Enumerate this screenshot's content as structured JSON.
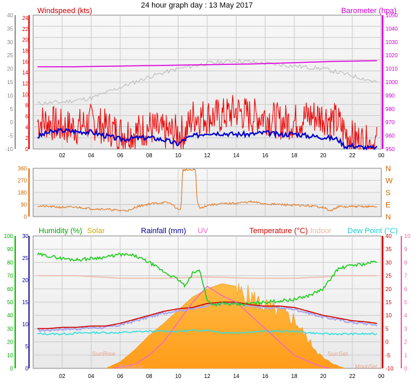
{
  "title": "24 hour graph day : 13 May 2017",
  "colors": {
    "wind": "#ee0000",
    "windAvg": "#0000cc",
    "baro": "#dd00dd",
    "temp": "#cc0000",
    "indoor": "#f0b8a8",
    "dew": "#33dddd",
    "feel": "#aaa6ee",
    "hum": "#22cc22",
    "solar": "#ffaa33",
    "solarMax": "#bbbbbb",
    "uv": "#ee66cc",
    "rain": "#000099",
    "dir": "#dd7722",
    "axisGreen": "#00cc00",
    "axisPink": "#ee66aa",
    "axisBlue": "#333399",
    "axisGray": "#999999",
    "plotBg": "#f5f5f5",
    "grid": "#cccccc",
    "note": "#e8a898"
  },
  "chart_data": [
    {
      "type": "line",
      "title": "",
      "x_ticks": [
        "02",
        "04",
        "06",
        "08",
        "10",
        "12",
        "14",
        "16",
        "18",
        "20",
        "22",
        "00"
      ],
      "left_axis": {
        "label": "Windspeed (kts)",
        "ticks": [
          "0",
          "2",
          "4",
          "6",
          "8",
          "10",
          "12",
          "14",
          "16",
          "18",
          "20",
          "22",
          "24"
        ],
        "ylim": [
          0,
          24.5
        ]
      },
      "left_gray_axis": {
        "ticks": [
          "-10",
          "-5",
          "0",
          "5",
          "10",
          "15",
          "20",
          "25",
          "30",
          "35",
          "40"
        ],
        "ylim": [
          -10,
          40
        ]
      },
      "right_axis": {
        "label": "Barometer (hpa)",
        "ticks": [
          "950",
          "960",
          "970",
          "980",
          "990",
          "1000",
          "1010",
          "1020",
          "1030",
          "1040",
          "1050"
        ],
        "ylim": [
          950,
          1050
        ]
      },
      "series": [
        {
          "name": "Windspeed (kts)",
          "axis": "left",
          "x": [
            0.3,
            1,
            2,
            3,
            4,
            5,
            6,
            7,
            8,
            9,
            10,
            10.5,
            11,
            12,
            13,
            14,
            15,
            16,
            17,
            18,
            19,
            20,
            21,
            21.5,
            22,
            23,
            23.7
          ],
          "y": [
            5,
            5,
            4,
            4,
            5,
            4,
            3,
            3,
            4,
            3,
            3,
            3,
            6,
            6,
            6,
            7,
            6,
            6,
            5,
            5,
            6,
            6,
            5,
            3,
            2,
            1,
            1
          ]
        },
        {
          "name": "Wind average",
          "axis": "left",
          "x": [
            0.3,
            1,
            2,
            3,
            4,
            5,
            6,
            7,
            8,
            9,
            10,
            10.5,
            11,
            12,
            13,
            14,
            15,
            16,
            17,
            18,
            19,
            20,
            21,
            21.5,
            22,
            23,
            23.7
          ],
          "y": [
            2.2,
            3,
            3.4,
            3.2,
            3.1,
            2.4,
            1.8,
            2,
            2.1,
            1.7,
            0.9,
            1.9,
            2.3,
            3,
            2.9,
            2.7,
            2.7,
            3,
            2.6,
            2.8,
            2.4,
            2.2,
            1.8,
            0.5,
            0.6,
            0.2,
            0.1
          ]
        },
        {
          "name": "Barometer (hpa)",
          "axis": "right",
          "x": [
            0.3,
            3,
            6,
            9,
            12,
            15,
            18,
            21,
            23.7
          ],
          "y": [
            1011.5,
            1011.5,
            1012,
            1012.5,
            1013,
            1013.5,
            1014.5,
            1015.5,
            1016
          ]
        },
        {
          "name": "Gray trace",
          "axis": "left_gray",
          "x": [
            0.3,
            2,
            4,
            6,
            8,
            10,
            12,
            14,
            16,
            18,
            20,
            21.5,
            23,
            23.7
          ],
          "y": [
            7,
            7.5,
            9,
            13,
            17,
            20,
            22,
            23,
            22,
            21,
            20,
            18,
            16,
            15
          ]
        }
      ]
    },
    {
      "type": "line",
      "title": "",
      "x_ticks": [],
      "left_axis": {
        "ticks": [
          "0",
          "90",
          "180",
          "270",
          "360"
        ],
        "ylim": [
          0,
          360
        ]
      },
      "right_axis": {
        "ticks": [
          "N",
          "W",
          "S",
          "E",
          "N"
        ]
      },
      "series": [
        {
          "name": "Wind direction",
          "x": [
            0.3,
            1,
            2,
            3,
            4,
            5,
            6,
            6.8,
            7,
            8,
            9,
            9.5,
            10,
            10.2,
            10.3,
            10.5,
            11,
            11.2,
            11.3,
            11.5,
            12,
            13,
            14,
            15,
            16,
            17,
            18,
            19,
            20,
            20.5,
            21,
            21.5,
            22,
            23,
            23.7
          ],
          "y": [
            80,
            75,
            70,
            70,
            60,
            55,
            45,
            48,
            70,
            95,
            105,
            100,
            50,
            65,
            345,
            350,
            345,
            355,
            110,
            60,
            85,
            95,
            100,
            110,
            95,
            90,
            85,
            80,
            70,
            40,
            75,
            72,
            75,
            75,
            75
          ]
        }
      ]
    },
    {
      "type": "area",
      "title": "",
      "x_ticks": [
        "02",
        "04",
        "06",
        "08",
        "10",
        "12",
        "14",
        "16",
        "18",
        "20",
        "22",
        "00"
      ],
      "legend": [
        "Humidity (%)",
        "Solar",
        "Rainfall (mm)",
        "UV",
        "Temperature (°C)",
        "Indoor",
        "Dew Point (°C)"
      ],
      "left_green_axis": {
        "label": "Humidity (%)",
        "ticks": [
          "0",
          "10",
          "20",
          "30",
          "40",
          "50",
          "60",
          "70",
          "80",
          "90",
          "100"
        ],
        "ylim": [
          0,
          100
        ]
      },
      "left_axis": {
        "label": "Rainfall (mm)",
        "ticks": [
          "0",
          "5",
          "10",
          "15",
          "20",
          "25",
          "30"
        ],
        "ylim": [
          0,
          30
        ]
      },
      "right_axis": {
        "label": "Temperature (°C)",
        "ticks": [
          "-10",
          "-5",
          "0",
          "5",
          "10",
          "15",
          "20",
          "25",
          "30",
          "35",
          "40"
        ],
        "ylim": [
          -10,
          40
        ]
      },
      "right_pink_axis": {
        "label": "UV",
        "ticks": [
          "0",
          "1",
          "2",
          "3",
          "4",
          "5",
          "6",
          "7",
          "8",
          "9",
          "10"
        ],
        "ylim": [
          0,
          10
        ]
      },
      "annotations": [
        "SunRise",
        "SunSet",
        "MoonRise",
        "MoonSet"
      ],
      "series": [
        {
          "name": "Humidity (%)",
          "axis": "left_green",
          "x": [
            0.3,
            1,
            2,
            3,
            4,
            5,
            6,
            7,
            8,
            9,
            10,
            10.5,
            11,
            11.5,
            12,
            12.5,
            13,
            14,
            15,
            16,
            17,
            18,
            19,
            20,
            21,
            22,
            23,
            23.7
          ],
          "y": [
            86,
            85,
            83,
            82,
            83,
            84,
            86,
            85,
            80,
            73,
            67,
            62,
            72,
            74,
            51,
            48,
            49,
            48,
            49,
            50,
            51,
            52,
            55,
            60,
            75,
            78,
            79,
            81
          ]
        },
        {
          "name": "Temperature (°C)",
          "axis": "right",
          "x": [
            0.3,
            1,
            2,
            3,
            4,
            5,
            6,
            7,
            8,
            9,
            10,
            11,
            12,
            13,
            14,
            15,
            16,
            17,
            18,
            19,
            20,
            21,
            22,
            23,
            23.7
          ],
          "y": [
            5,
            5,
            5.5,
            5.5,
            6,
            6,
            7,
            8.5,
            10,
            11.5,
            12.5,
            13,
            14.5,
            15,
            15,
            14,
            13.5,
            13.5,
            13,
            11.5,
            10,
            9,
            8,
            7.5,
            7
          ]
        },
        {
          "name": "Dew Point (°C)",
          "axis": "right",
          "x": [
            0.3,
            2,
            4,
            6,
            8,
            10,
            12,
            13,
            14,
            16,
            18,
            20,
            22,
            23.7
          ],
          "y": [
            3,
            3,
            3.5,
            3.5,
            4,
            4,
            4.5,
            3.5,
            3.5,
            4,
            4,
            3,
            3,
            3
          ]
        },
        {
          "name": "Indoor",
          "axis": "right",
          "x": [
            0.3,
            3,
            6,
            9,
            12,
            15,
            18,
            20,
            21,
            23.7
          ],
          "y": [
            25,
            25,
            24,
            24,
            24.5,
            24,
            24,
            24.5,
            25,
            25
          ]
        },
        {
          "name": "Solar",
          "axis": "left_green",
          "x": [
            5,
            6,
            7,
            8,
            9,
            10,
            11,
            12,
            13,
            14,
            15,
            16,
            17,
            18,
            19,
            20,
            21,
            21.5
          ],
          "y": [
            0,
            5,
            14,
            25,
            34,
            44,
            54,
            60,
            64,
            62,
            58,
            50,
            45,
            40,
            22,
            8,
            2,
            0
          ]
        },
        {
          "name": "UV",
          "axis": "right_pink",
          "x": [
            5.5,
            7,
            8,
            9,
            10,
            11,
            12,
            13,
            14,
            15,
            16,
            17,
            18,
            19,
            20,
            20.5
          ],
          "y": [
            0,
            0.3,
            1,
            2,
            3.5,
            5,
            6.2,
            5.5,
            5,
            4,
            3,
            2,
            1,
            0.5,
            0.1,
            0
          ]
        }
      ]
    }
  ]
}
